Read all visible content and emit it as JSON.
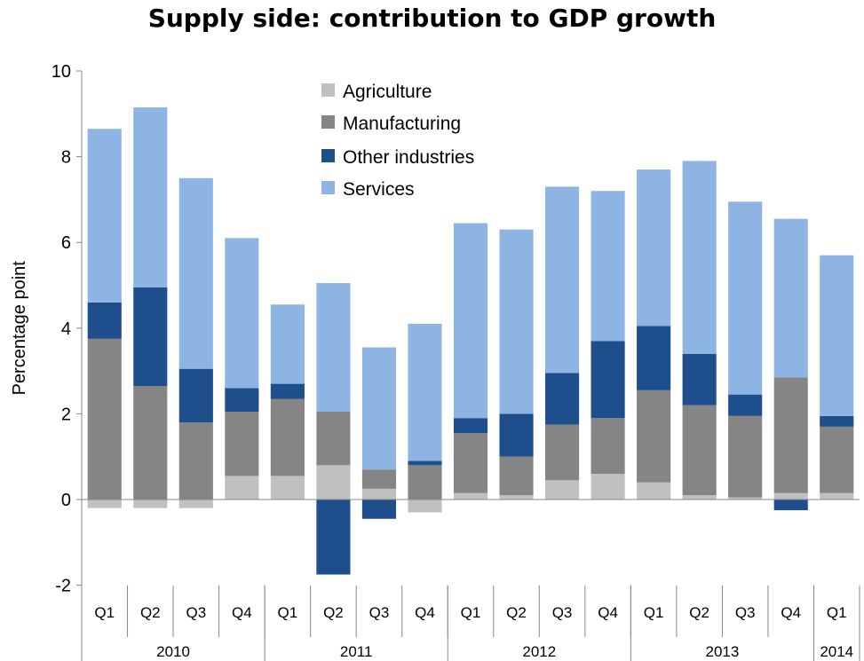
{
  "chart_data": {
    "type": "bar",
    "stacked": true,
    "title": "Supply side: contribution to GDP growth",
    "xlabel": "",
    "ylabel": "Percentage point",
    "ylim": [
      -2,
      10
    ],
    "yticks": [
      -2,
      0,
      2,
      4,
      6,
      8,
      10
    ],
    "grid": false,
    "legend": "top-center",
    "categories": [
      "Q1",
      "Q2",
      "Q3",
      "Q4",
      "Q1",
      "Q2",
      "Q3",
      "Q4",
      "Q1",
      "Q2",
      "Q3",
      "Q4",
      "Q1",
      "Q2",
      "Q3",
      "Q4",
      "Q1"
    ],
    "years": [
      {
        "label": "2010",
        "span": 4
      },
      {
        "label": "2011",
        "span": 4
      },
      {
        "label": "2012",
        "span": 4
      },
      {
        "label": "2013",
        "span": 4
      },
      {
        "label": "2014",
        "span": 1
      }
    ],
    "series": [
      {
        "name": "Agriculture",
        "color": "#c0c0c0",
        "values": [
          -0.2,
          -0.2,
          -0.2,
          0.55,
          0.55,
          0.8,
          0.25,
          -0.3,
          0.15,
          0.1,
          0.45,
          0.6,
          0.4,
          0.1,
          0.05,
          0.15,
          0.15
        ]
      },
      {
        "name": "Manufacturing",
        "color": "#858585",
        "values": [
          3.75,
          2.65,
          1.8,
          1.5,
          1.8,
          1.25,
          0.45,
          0.8,
          1.4,
          0.9,
          1.3,
          1.3,
          2.15,
          2.1,
          1.9,
          2.7,
          1.55
        ]
      },
      {
        "name": "Other industries",
        "color": "#1f4e8c",
        "values": [
          0.85,
          2.3,
          1.25,
          0.55,
          0.35,
          -1.75,
          -0.45,
          0.1,
          0.35,
          1.0,
          1.2,
          1.8,
          1.5,
          1.2,
          0.5,
          -0.25,
          0.25
        ]
      },
      {
        "name": "Services",
        "color": "#8db4e2",
        "values": [
          4.05,
          4.2,
          4.45,
          3.5,
          1.85,
          3.0,
          2.85,
          3.2,
          4.55,
          4.3,
          4.35,
          3.5,
          3.65,
          4.5,
          4.5,
          3.7,
          3.75
        ]
      }
    ]
  }
}
